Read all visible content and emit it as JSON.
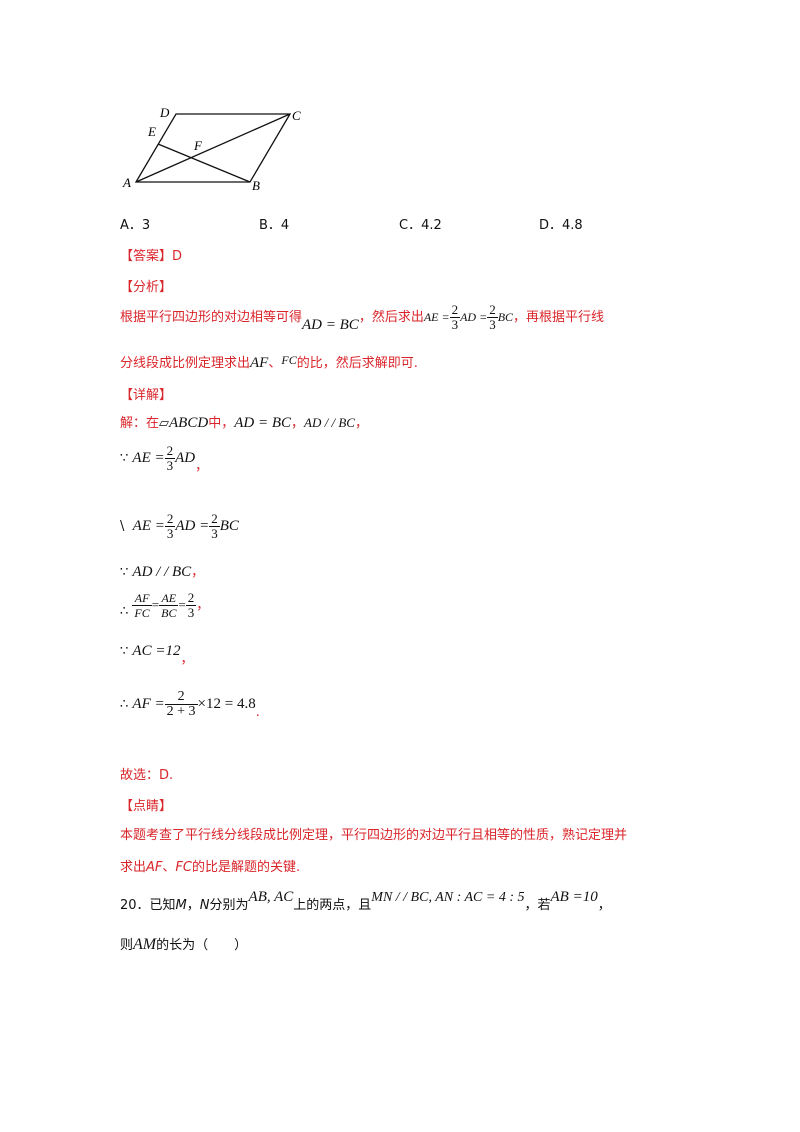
{
  "figure": {
    "labels": {
      "D": "D",
      "C": "C",
      "E": "E",
      "F": "F",
      "A": "A",
      "B": "B"
    }
  },
  "options": {
    "a": "A．3",
    "b": "B．4",
    "c": "C．4.2",
    "d": "D．4.8"
  },
  "answer": {
    "header": "【答案】",
    "value": "D"
  },
  "analysis": {
    "header": "【分析】",
    "line1_pre": "根据平行四边形的对边相等可得",
    "line1_eq": "AD = BC",
    "line1_mid": "，然后求出",
    "ae": "AE =",
    "ad": "AD =",
    "bc": "BC",
    "line1_post": "，再根据平行线",
    "line2_pre": "分线段成比例定理求出",
    "af": "AF",
    "sep": "、",
    "fc": "FC",
    "line2_post": "的比，然后求解即可."
  },
  "detail": {
    "header": "【详解】",
    "l1_pre": "解：在",
    "l1_para": "▱",
    "l1_abcd": "ABCD",
    "l1_zh": "中，",
    "l1_eq1": "AD = BC",
    "l1_comma": "，",
    "l1_eq2": "AD / / BC",
    "l1_end": "，",
    "l2_sym": "∵",
    "l2_lhs": "AE =",
    "l2_rhs": "AD",
    "l2_end": "，",
    "l3_sym": "\\",
    "l3_lhs": "AE =",
    "l3_mid": "AD =",
    "l3_rhs": "BC",
    "l4_sym": "∵",
    "l4_expr": "AD / / BC",
    "l4_end": "，",
    "l5_sym": "∴",
    "l5_f1n": "AF",
    "l5_f1d": "FC",
    "l5_f2n": "AE",
    "l5_f2d": "BC",
    "eq": "=",
    "end": "，",
    "l6_sym": "∵",
    "l6_expr": "AC =12",
    "l6_end": "，",
    "l7_sym": "∴",
    "l7_lhs": "AF =",
    "l7_fn": "2",
    "l7_fd": "2 + 3",
    "l7_rhs": "×12 = 4.8",
    "l7_end": ".",
    "frac_num": "2",
    "frac_den": "3",
    "choice": "故选：D."
  },
  "comment": {
    "header": "【点睛】",
    "line1": "本题考查了平行线分线段成比例定理，平行四边形的对边平行且相等的性质，熟记定理并",
    "line2_pre": "求出",
    "line2_af": "AF",
    "line2_sep": "、",
    "line2_fc": "FC",
    "line2_post": "的比是解题的关键."
  },
  "q20": {
    "line1_pre": "20．已知",
    "m": "M",
    "comma": "，",
    "n": "N",
    "line1_mid": "分别为",
    "ab_ac": "AB, AC",
    "line1_mid2": "上的两点，且",
    "cond": "MN / / BC, AN : AC = 4 : 5",
    "line1_mid3": "，若",
    "ab10": "AB =10",
    "line1_end": "，",
    "line2_pre": "则",
    "am": "AM",
    "line2_post": "的长为（　　）"
  }
}
